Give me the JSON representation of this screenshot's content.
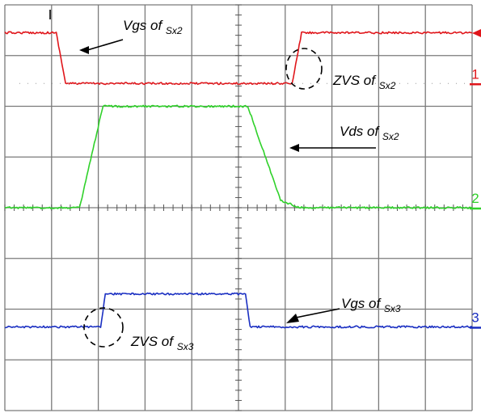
{
  "chart_data": {
    "type": "line",
    "title": "",
    "xlabel": "",
    "ylabel": "",
    "grid": true,
    "grid_divisions": {
      "x": 10,
      "y": 8
    },
    "xlim": [
      0,
      10
    ],
    "ylim": [
      -4,
      4
    ],
    "series": [
      {
        "name": "1",
        "color": "#e0161b",
        "x": [
          0,
          1.1,
          1.3,
          6.15,
          6.35,
          10
        ],
        "y": [
          3.45,
          3.45,
          2.45,
          2.45,
          3.45,
          3.45
        ]
      },
      {
        "name": "2",
        "color": "#2fd12a",
        "x": [
          0,
          1.6,
          2.1,
          5.2,
          5.9,
          6.3,
          10
        ],
        "y": [
          0,
          0,
          2.0,
          2.0,
          0.15,
          0,
          0
        ]
      },
      {
        "name": "3",
        "color": "#1a2fc2",
        "x": [
          0,
          2.05,
          2.15,
          5.15,
          5.25,
          10
        ],
        "y": [
          -2.35,
          -2.35,
          -1.7,
          -1.7,
          -2.35,
          -2.35
        ]
      }
    ],
    "annotations": [
      {
        "text": "Vgs of ",
        "sub": "Sx2"
      },
      {
        "text": "ZVS of ",
        "sub": "Sx2"
      },
      {
        "text": "Vds of  ",
        "sub": "Sx2"
      },
      {
        "text": "Vgs of  ",
        "sub": "Sx3"
      },
      {
        "text": "ZVS of ",
        "sub": "Sx3"
      }
    ]
  }
}
